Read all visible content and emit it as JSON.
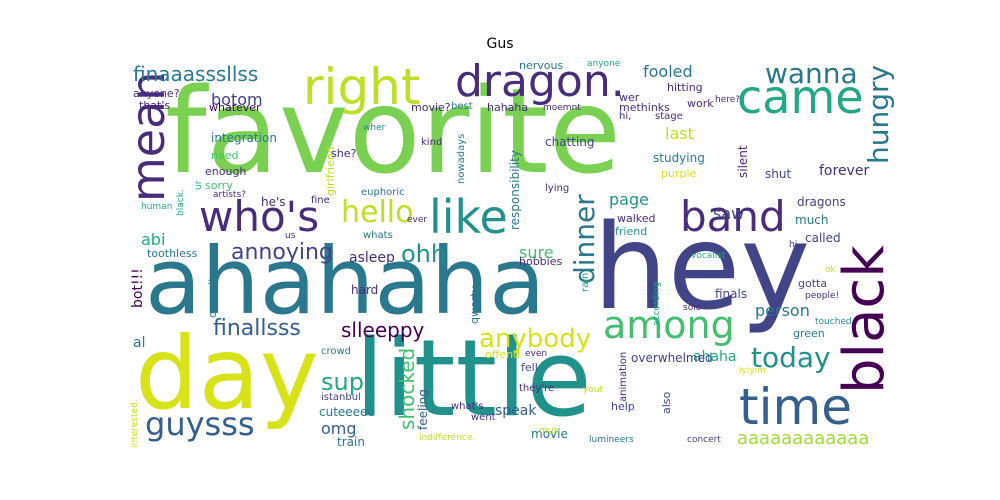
{
  "title": "Gus",
  "words": {
    "favorite": "favorite",
    "hey": "hey",
    "ahahaha": "ahahaha",
    "little": "little",
    "day": "day",
    "dragon": "dragon.",
    "right": "right",
    "came": "came",
    "black": "black",
    "time": "time",
    "band": "band",
    "mean": "mean",
    "who_s": "who's",
    "like": "like",
    "hello": "hello",
    "among": "among",
    "hungry": "hungry",
    "wanna": "wanna",
    "dinner": "dinner",
    "today": "today",
    "guysss": "guysss",
    "annoying": "annoying",
    "ohh": "ohh",
    "anybody": "anybody",
    "finallsss": "finallsss",
    "finaaasssllss": "finaaasssllss",
    "sup": "sup",
    "slleeppy": "slleeppy",
    "shocked": "shocked",
    "aaaaaaaaaaaa": "aaaaaaaaaaaa",
    "botom": "botom",
    "fooled": "fooled",
    "saw": "saw",
    "last": "last",
    "page": "page",
    "person": "person",
    "ahaha": "ahaha",
    "omg": "omg",
    "sure": "sure",
    "abi": "abi",
    "al": "al",
    "bot": "bot!!!",
    "train": "train",
    "feeling": "feeling",
    "speak": "speak",
    "movie": "movie",
    "finals": "finals",
    "dragons": "dragons",
    "forever": "forever",
    "called": "called",
    "much": "much",
    "shut": "shut",
    "silent": "silent",
    "studying": "studying",
    "chatting": "chatting",
    "girlfriend": "girlfriend",
    "responsibility": "responsibility",
    "nowadays": "nowadays",
    "overwhelmed": "overwhelmed",
    "cuteeeee": "cuteeeee",
    "asleep": "asleep",
    "hard": "hard",
    "whatever": "whatever",
    "integration": "integration",
    "need": "need",
    "enough": "enough",
    "sorry": "sorry",
    "anyone_q": "anyone?",
    "that_s": "that's",
    "movie_q": "movie?",
    "hahaha": "hahaha",
    "methinks": "methinks",
    "hitting": "hitting",
    "nervous": "nervous",
    "gotta": "gotta",
    "purple": "purple",
    "toothless": "toothless",
    "qwerty": "qwerty",
    "hobbies": "hobbies",
    "fell": "fell",
    "offend": "offend",
    "crowd": "crowd",
    "opposite": "opposite",
    "whats": "whats",
    "she_q": "she?",
    "he_s": "he's",
    "fine": "fine",
    "walked": "walked",
    "friend": "friend",
    "lying": "lying",
    "euphoric": "euphoric",
    "work": "work",
    "wer": "wer",
    "hi": "hi,",
    "moemnt": "moemnt",
    "best": "best",
    "kind": "kind",
    "stage": "stage",
    "here_q": "here?",
    "anyone": "anyone",
    "ever": "ever",
    "artists": "artists?",
    "black_dot": "black.",
    "human": "human",
    "ur": "ur",
    "us": "us",
    "rain": "rain",
    "according": "according",
    "vocalist": "vocalist",
    "solo": "solo",
    "ok": "ok",
    "people": "people!",
    "touched": "touched",
    "green": "green",
    "hi2": "hi",
    "istanbul": "i̇stanbul",
    "even": "even",
    "they_re": "they're",
    "what_s": "what's",
    "went": "went",
    "yout": "yout",
    "help": "help",
    "also": "also",
    "animation": "animation",
    "iyiyim": "iyiyim",
    "indifference": "indifference.",
    "musi": "musi",
    "lumineers": "lumineers",
    "concert": "concert",
    "interested": "interested.",
    "wher": "wher"
  },
  "colors": {
    "yellowgreen": "#a2da38",
    "lightgreen": "#7ad151",
    "green": "#44bf70",
    "teal": "#22a884",
    "tealblue": "#21918c",
    "blue": "#2a788e",
    "steel": "#355f8d",
    "indigo": "#414487",
    "purple": "#472d7b",
    "dark": "#440154",
    "yellow": "#d8e219",
    "lime": "#bddf26"
  }
}
